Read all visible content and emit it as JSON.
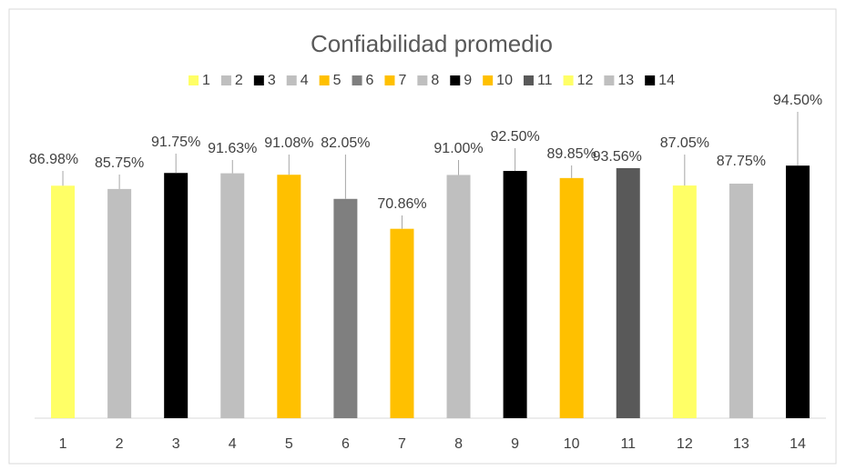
{
  "chart_data": {
    "type": "bar",
    "title": "Confiabilidad promedio",
    "categories": [
      "1",
      "2",
      "3",
      "4",
      "5",
      "6",
      "7",
      "8",
      "9",
      "10",
      "11",
      "12",
      "13",
      "14"
    ],
    "values": [
      86.98,
      85.75,
      91.75,
      91.63,
      91.08,
      82.05,
      70.86,
      91.0,
      92.5,
      89.85,
      93.56,
      87.05,
      87.75,
      94.5
    ],
    "value_labels": [
      "86.98%",
      "85.75%",
      "91.75%",
      "91.63%",
      "91.08%",
      "82.05%",
      "70.86%",
      "91.00%",
      "92.50%",
      "89.85%",
      "93.56%",
      "87.05%",
      "87.75%",
      "94.50%"
    ],
    "colors": [
      "#ffff66",
      "#bfbfbf",
      "#000000",
      "#bfbfbf",
      "#ffc000",
      "#7f7f7f",
      "#ffc000",
      "#bfbfbf",
      "#000000",
      "#ffc000",
      "#595959",
      "#ffff66",
      "#bfbfbf",
      "#000000"
    ],
    "ylim": [
      0,
      100
    ],
    "legend": "top"
  }
}
